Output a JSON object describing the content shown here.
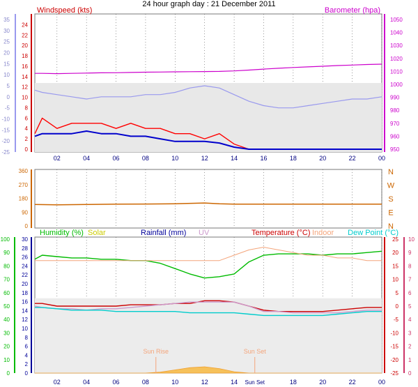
{
  "title": "24 hour graph day : 21 December 2011",
  "x_ticks": [
    "02",
    "04",
    "06",
    "08",
    "10",
    "12",
    "14",
    "16",
    "18",
    "20",
    "22",
    "00"
  ],
  "colors": {
    "windspeed": "#ff0000",
    "windavg": "#0000cc",
    "baro": "#cc00cc",
    "farleft": "#9999ee",
    "direction": "#cc6600",
    "humidity": "#00bb00",
    "solar": "#cccc00",
    "rainfall": "#000099",
    "uv": "#cc99cc",
    "temperature": "#cc0000",
    "indoor": "#f4a47a",
    "dewpoint": "#00cccc",
    "solarfill": "#f6c15a",
    "grid": "#555555"
  },
  "chart_data": [
    {
      "type": "line",
      "panel": "wind",
      "series_labels": {
        "windspeed": "Windspeed (kts)",
        "barometer": "Barometer (hpa)"
      },
      "windspeed_axis": {
        "ticks": [
          0,
          2,
          4,
          6,
          8,
          10,
          12,
          14,
          16,
          18,
          20,
          22,
          24
        ],
        "range": [
          0,
          25
        ]
      },
      "barometer_axis": {
        "ticks": [
          950,
          960,
          970,
          980,
          990,
          1000,
          1010,
          1020,
          1030,
          1040,
          1050
        ],
        "range": [
          950,
          1050
        ]
      },
      "far_left_axis": {
        "ticks": [
          35,
          30,
          25,
          20,
          15,
          10,
          5,
          0,
          -5,
          -10,
          -15,
          -20,
          -25
        ],
        "range": [
          -25,
          35
        ]
      },
      "x": [
        0.5,
        1,
        2,
        3,
        4,
        5,
        6,
        7,
        8,
        9,
        10,
        11,
        12,
        13,
        14,
        15,
        16,
        17,
        18,
        19,
        20,
        21,
        22,
        23,
        24
      ],
      "series": [
        {
          "key": "barometer",
          "axis": "barometer",
          "values": [
            1008.5,
            1008.5,
            1008.3,
            1008.5,
            1008.7,
            1008.9,
            1009.0,
            1009.2,
            1009.4,
            1009.5,
            1009.7,
            1009.8,
            1009.9,
            1010.0,
            1010.4,
            1011.0,
            1011.8,
            1012.4,
            1013.0,
            1013.5,
            1014.0,
            1014.5,
            1014.9,
            1015.3,
            1015.6
          ]
        },
        {
          "key": "far_left_line",
          "axis": "far_left",
          "values": [
            3,
            2,
            1,
            0,
            -1,
            0,
            0,
            0,
            1,
            1,
            2,
            4,
            5,
            4,
            1,
            -2,
            -4,
            -5,
            -5,
            -4,
            -3,
            -2,
            -1,
            -1,
            0
          ]
        },
        {
          "key": "windspeed",
          "axis": "windspeed",
          "values": [
            3,
            6,
            4,
            5,
            5,
            5,
            4,
            5,
            4,
            4,
            3,
            3,
            2,
            3,
            1,
            0,
            0,
            0,
            0,
            0,
            0,
            0,
            0,
            0,
            0
          ]
        },
        {
          "key": "windavg",
          "axis": "windspeed",
          "values": [
            2.5,
            3,
            3,
            3,
            3.5,
            3,
            3,
            2.5,
            2.5,
            2,
            1.5,
            1.5,
            1.5,
            1.2,
            0.4,
            0,
            0,
            0,
            0,
            0,
            0,
            0,
            0,
            0,
            0
          ]
        }
      ]
    },
    {
      "type": "line",
      "panel": "direction",
      "axis_ticks": [
        360,
        270,
        180,
        90,
        0
      ],
      "axis_range": [
        0,
        360
      ],
      "compass": [
        "N",
        "W",
        "S",
        "E",
        "N"
      ],
      "x": [
        0.5,
        2,
        4,
        6,
        8,
        10,
        12,
        13,
        14,
        16,
        18,
        20,
        22,
        24
      ],
      "values": [
        140,
        138,
        140,
        142,
        143,
        145,
        150,
        145,
        142,
        142,
        142,
        142,
        142,
        142
      ]
    },
    {
      "type": "line",
      "panel": "weather",
      "series_labels": {
        "humidity": "Humidity (%)",
        "solar": "Solar",
        "rainfall": "Rainfall (mm)",
        "uv": "UV",
        "temperature": "Temperature (°C)",
        "indoor": "Indoor",
        "dewpoint": "Dew Point (°C)"
      },
      "humidity_axis": {
        "ticks": [
          0,
          10,
          20,
          30,
          40,
          50,
          60,
          70,
          80,
          90,
          100
        ],
        "range": [
          0,
          100
        ]
      },
      "rain_axis": {
        "ticks": [
          0,
          2,
          4,
          6,
          8,
          10,
          12,
          14,
          16,
          18,
          20,
          22,
          24,
          26,
          28,
          30
        ],
        "range": [
          0,
          30
        ]
      },
      "temperature_axis": {
        "ticks": [
          25,
          20,
          15,
          10,
          5,
          0,
          -5,
          -10,
          -15,
          -20,
          -25
        ],
        "range": [
          -25,
          25
        ]
      },
      "uv_axis": {
        "ticks": [
          10,
          9,
          8,
          7,
          6,
          5,
          4,
          3,
          2,
          1,
          0
        ],
        "range": [
          0,
          10
        ]
      },
      "x": [
        0.5,
        1,
        2,
        3,
        4,
        5,
        6,
        7,
        8,
        9,
        10,
        11,
        12,
        13,
        14,
        15,
        16,
        17,
        18,
        19,
        20,
        21,
        22,
        23,
        24
      ],
      "series": [
        {
          "key": "humidity",
          "axis": "humidity",
          "values": [
            85,
            88,
            87,
            86,
            86,
            85,
            85,
            84,
            84,
            82,
            78,
            74,
            71,
            72,
            74,
            83,
            88,
            89,
            89,
            89,
            88,
            89,
            89,
            90,
            91
          ]
        },
        {
          "key": "indoor",
          "axis": "temperature",
          "values": [
            17,
            17,
            17,
            17,
            17,
            17,
            17,
            17,
            17,
            17,
            17,
            17,
            17,
            17,
            19,
            21,
            22,
            21,
            20,
            19,
            19,
            18,
            18,
            17,
            17
          ]
        },
        {
          "key": "temperature",
          "axis": "temperature",
          "values": [
            1,
            1,
            0,
            0,
            0,
            0,
            0,
            0.5,
            0.5,
            0.5,
            1,
            1,
            2,
            2,
            1.5,
            0,
            -1.5,
            -2,
            -2,
            -2,
            -2,
            -1.5,
            -1,
            -0.5,
            -0.5
          ]
        },
        {
          "key": "uv_line",
          "axis": "temperature",
          "values": [
            0,
            -0.5,
            -1,
            -1,
            -1.5,
            -1,
            -1,
            -0.5,
            0,
            0.5,
            1,
            1.5,
            1.5,
            1.5,
            1.5,
            0,
            -2,
            -2,
            -2.5,
            -2.5,
            -2.5,
            -2.5,
            -2,
            -1.5,
            -1.5
          ]
        },
        {
          "key": "dewpoint",
          "axis": "temperature",
          "values": [
            -0.5,
            -0.5,
            -1,
            -1.5,
            -1.5,
            -1.5,
            -2,
            -2,
            -2,
            -2,
            -2,
            -2.5,
            -2.5,
            -2.5,
            -2.5,
            -3,
            -3.5,
            -3.5,
            -3.5,
            -3.5,
            -3.5,
            -3,
            -2.5,
            -2,
            -2
          ]
        },
        {
          "key": "solar",
          "axis": "rainfall",
          "values": [
            0,
            0,
            0,
            0,
            0,
            0,
            0,
            0,
            0,
            0.2,
            0.7,
            1.2,
            1.4,
            1.0,
            0.3,
            0,
            0,
            0,
            0,
            0,
            0,
            0,
            0,
            0,
            0
          ]
        }
      ],
      "sun_rise": {
        "label": "Sun Rise",
        "x": 8.7
      },
      "sun_set": {
        "label": "Sun Set",
        "x": 15.4
      },
      "sun_set_axis_label": "Sun Set"
    }
  ]
}
